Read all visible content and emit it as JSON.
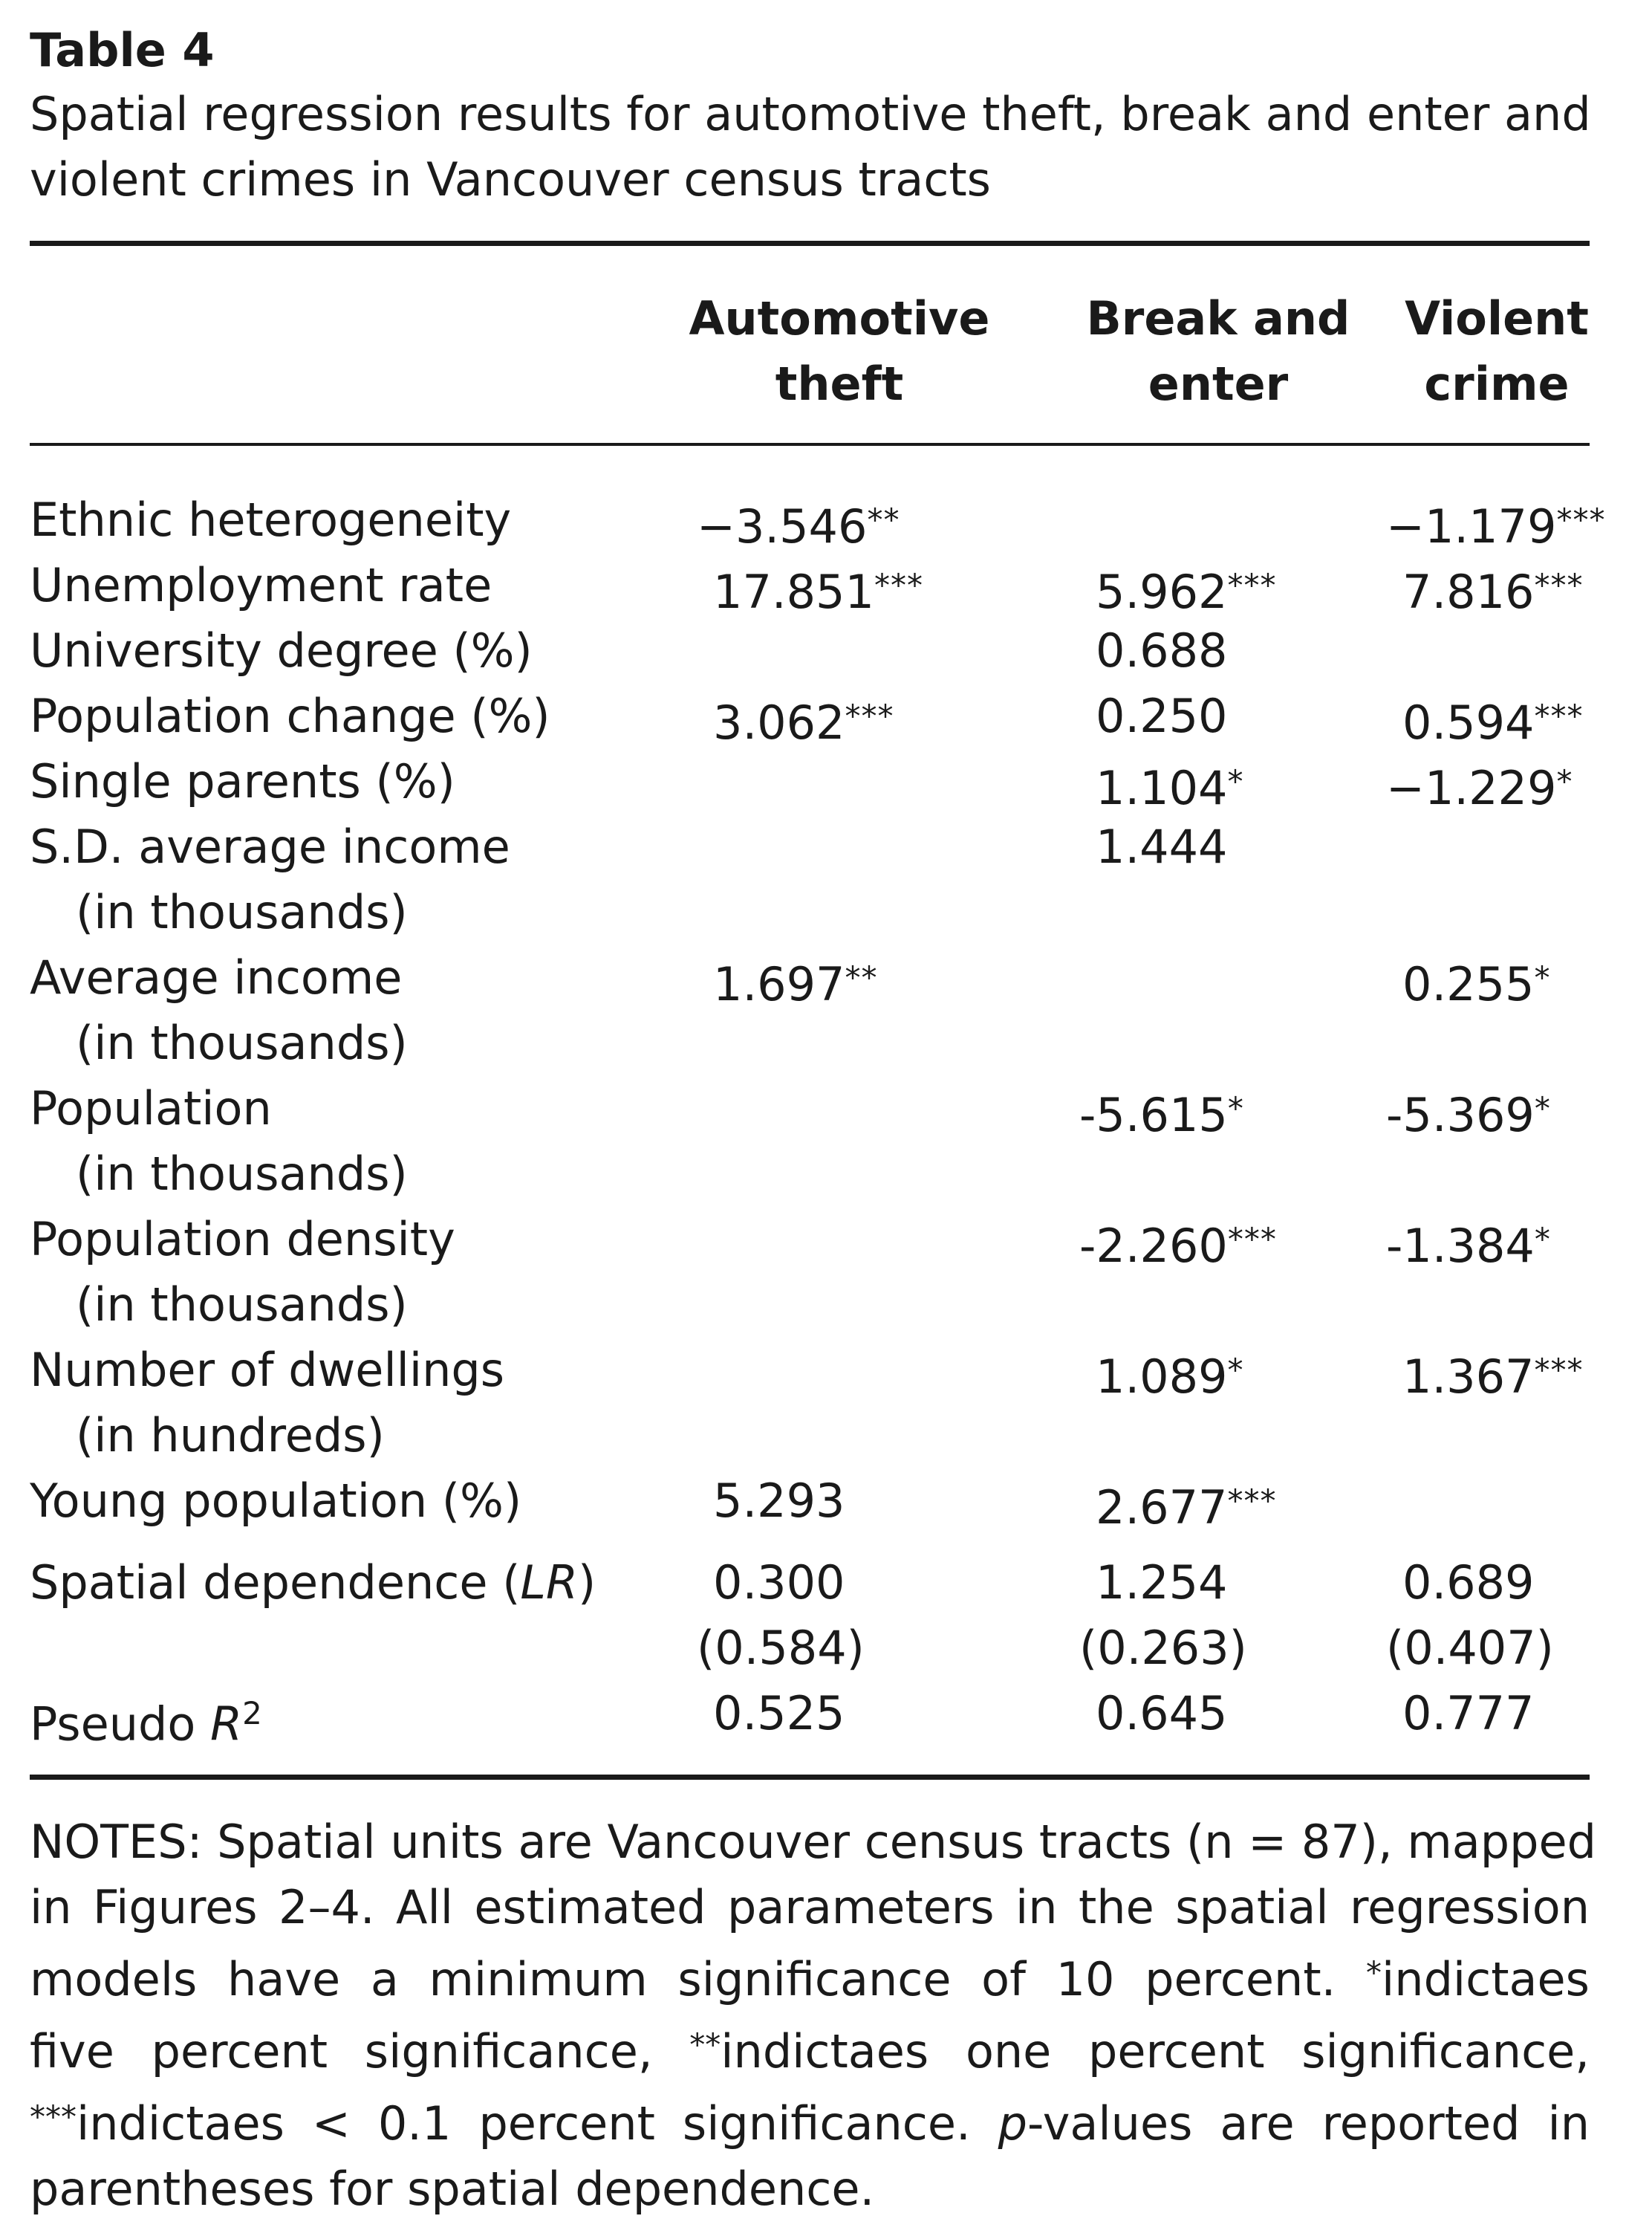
{
  "table_label": "Table 4",
  "caption_lines": [
    "Spatial regression results for automotive theft, break and enter and",
    "violent crimes in Vancouver census tracts"
  ],
  "columns": [
    {
      "line1": "Automotive",
      "line2": "theft"
    },
    {
      "line1": "Break and",
      "line2": "enter"
    },
    {
      "line1": "Violent",
      "line2": "crime"
    }
  ],
  "rows": [
    {
      "label": "Ethnic heterogeneity",
      "sublabel": "",
      "values": [
        {
          "num": "−3.546",
          "stars": "**"
        },
        {
          "num": "",
          "stars": ""
        },
        {
          "num": "−1.179",
          "stars": "***"
        }
      ]
    },
    {
      "label": "Unemployment rate",
      "sublabel": "",
      "values": [
        {
          "num": "17.851",
          "stars": "***"
        },
        {
          "num": "5.962",
          "stars": "***"
        },
        {
          "num": "7.816",
          "stars": "***"
        }
      ]
    },
    {
      "label": "University degree (%)",
      "sublabel": "",
      "values": [
        {
          "num": "",
          "stars": ""
        },
        {
          "num": "0.688",
          "stars": ""
        },
        {
          "num": "",
          "stars": ""
        }
      ]
    },
    {
      "label": "Population change (%)",
      "sublabel": "",
      "values": [
        {
          "num": "3.062",
          "stars": "***"
        },
        {
          "num": "0.250",
          "stars": ""
        },
        {
          "num": "0.594",
          "stars": "***"
        }
      ]
    },
    {
      "label": "Single parents (%)",
      "sublabel": "",
      "values": [
        {
          "num": "",
          "stars": ""
        },
        {
          "num": "1.104",
          "stars": "*"
        },
        {
          "num": "−1.229",
          "stars": "*"
        }
      ]
    },
    {
      "label": "S.D. average income",
      "sublabel": "(in thousands)",
      "values": [
        {
          "num": "",
          "stars": ""
        },
        {
          "num": "1.444",
          "stars": ""
        },
        {
          "num": "",
          "stars": ""
        }
      ]
    },
    {
      "label": "Average income",
      "sublabel": "(in thousands)",
      "values": [
        {
          "num": "1.697",
          "stars": "**"
        },
        {
          "num": "",
          "stars": ""
        },
        {
          "num": "0.255",
          "stars": "*"
        }
      ]
    },
    {
      "label": "Population",
      "sublabel": "(in thousands)",
      "values": [
        {
          "num": "",
          "stars": ""
        },
        {
          "num": "-5.615",
          "stars": "*"
        },
        {
          "num": "-5.369",
          "stars": "*"
        }
      ]
    },
    {
      "label": "Population density",
      "sublabel": "(in thousands)",
      "values": [
        {
          "num": "",
          "stars": ""
        },
        {
          "num": "-2.260",
          "stars": "***"
        },
        {
          "num": "-1.384",
          "stars": "*"
        }
      ]
    },
    {
      "label": "Number of dwellings",
      "sublabel": "(in hundreds)",
      "values": [
        {
          "num": "",
          "stars": ""
        },
        {
          "num": "1.089",
          "stars": "*"
        },
        {
          "num": "1.367",
          "stars": "***"
        }
      ]
    },
    {
      "label": "Young population (%)",
      "sublabel": "",
      "values": [
        {
          "num": "5.293",
          "stars": ""
        },
        {
          "num": "2.677",
          "stars": "***"
        },
        {
          "num": "",
          "stars": ""
        }
      ]
    }
  ],
  "spatial_dependence": {
    "label_prefix": "Spatial dependence (",
    "label_italic": "LR",
    "label_suffix": ")",
    "values": [
      "0.300",
      "1.254",
      "0.689"
    ],
    "pvalues": [
      "(0.584)",
      "(0.263)",
      "(0.407)"
    ]
  },
  "pseudo_r2": {
    "label": "Pseudo ",
    "label_italic": "R",
    "label_sup": "2",
    "values": [
      "0.525",
      "0.645",
      "0.777"
    ]
  },
  "notes": {
    "line1": "NOTES: Spatial units are Vancouver census tracts (n = 87), mapped",
    "line2": "in Figures 2–4. All estimated parameters in the spatial regression",
    "line3_a": "models have a minimum significance of 10 percent. ",
    "line3_stars": "*",
    "line3_b": "indictaes",
    "line4_a": "five percent significance, ",
    "line4_stars": "**",
    "line4_b": "indictaes one percent significance,",
    "line5_stars": "***",
    "line5_a": "indictaes < 0.1 percent significance. ",
    "line5_italic": "p",
    "line5_b": "-values are reported in",
    "line6": "parentheses for spatial dependence."
  }
}
